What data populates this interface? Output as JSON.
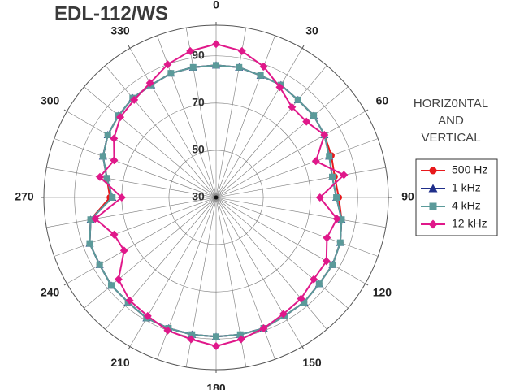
{
  "chart_data": {
    "type": "polar",
    "title": "EDL-112/WS",
    "legend_title": [
      "HORIZ0NTAL",
      "AND",
      "VERTICAL"
    ],
    "theta": [
      0,
      10,
      20,
      30,
      40,
      50,
      60,
      70,
      80,
      90,
      100,
      110,
      120,
      130,
      140,
      150,
      160,
      170,
      180,
      190,
      200,
      210,
      220,
      230,
      240,
      250,
      260,
      270,
      280,
      290,
      300,
      310,
      320,
      330,
      340,
      350
    ],
    "thetaticks": [
      0,
      30,
      60,
      90,
      120,
      150,
      180,
      210,
      240,
      270,
      300,
      330
    ],
    "theta_grid_step": 10,
    "rlim": [
      30,
      103
    ],
    "rticks": [
      30,
      50,
      70,
      90
    ],
    "series": [
      {
        "name": "500 Hz",
        "color": "#e8191c",
        "marker": "circle",
        "values": [
          86,
          86,
          85,
          85,
          84,
          84,
          83,
          82,
          81,
          82,
          84,
          86,
          87,
          87,
          88,
          88,
          89,
          89,
          89,
          89,
          89,
          89,
          88,
          88,
          87,
          87,
          84,
          75,
          77,
          81,
          83,
          84,
          85,
          85,
          86,
          86
        ]
      },
      {
        "name": "1 kHz",
        "color": "#1f2e8a",
        "marker": "triangle",
        "values": [
          86,
          86,
          85,
          85,
          84,
          84,
          83,
          81,
          80,
          81,
          84,
          86,
          87,
          87,
          88,
          88,
          89,
          89,
          89,
          89,
          89,
          89,
          88,
          88,
          87,
          87,
          84,
          74,
          77,
          81,
          83,
          84,
          85,
          85,
          86,
          86
        ]
      },
      {
        "name": "4 kHz",
        "color": "#5b9a9a",
        "marker": "square",
        "values": [
          86,
          86,
          85,
          85,
          84,
          84,
          83,
          81,
          80,
          81,
          84,
          86,
          87,
          87,
          88,
          88,
          89,
          89,
          89,
          89,
          89,
          89,
          88,
          88,
          87,
          87,
          84,
          74,
          77,
          81,
          83,
          84,
          85,
          85,
          86,
          86
        ]
      },
      {
        "name": "12 kHz",
        "color": "#e0188a",
        "marker": "diamond",
        "values": [
          95,
          93,
          89,
          84,
          80,
          80,
          83,
          75,
          85,
          74,
          82,
          80,
          84,
          84,
          86,
          87,
          89,
          91,
          93,
          91,
          90,
          88,
          87,
          84,
          75,
          76,
          82,
          70,
          80,
          76,
          80,
          83,
          84,
          86,
          90,
          93
        ]
      }
    ]
  }
}
